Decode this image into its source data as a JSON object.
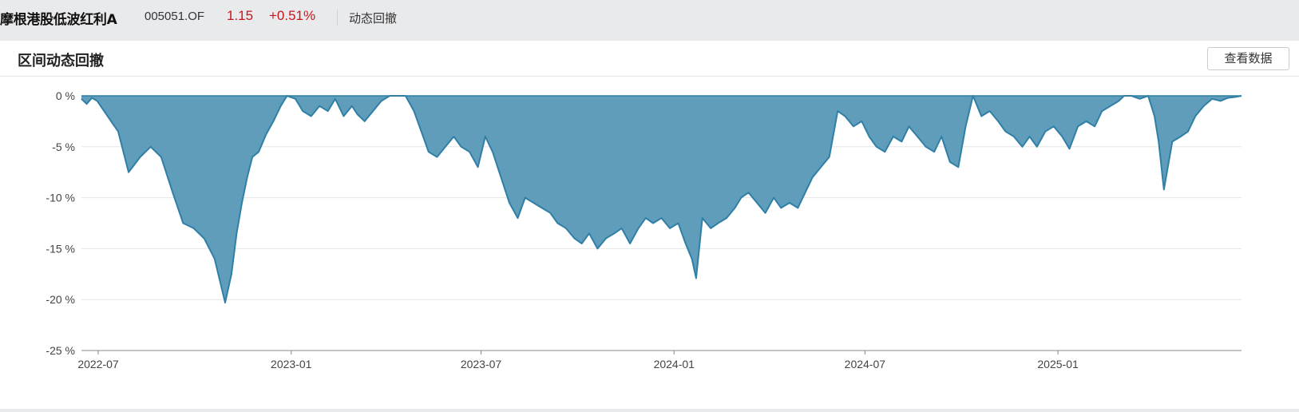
{
  "header": {
    "fund_name": "摩根港股低波红利A",
    "fund_code": "005051.OF",
    "price": "1.15",
    "change": "+0.51%",
    "nav_label": "动态回撤"
  },
  "panel": {
    "title": "区间动态回撤",
    "view_data_button": "查看数据"
  },
  "colors": {
    "area_fill": "#5f9dbb",
    "area_line": "#2f7fa6",
    "price_red": "#c8161d"
  },
  "chart_data": {
    "type": "area",
    "title": "",
    "xlabel": "",
    "ylabel": "",
    "ylim": [
      -25,
      0
    ],
    "y_ticks": [
      0,
      -5,
      -10,
      -15,
      -20,
      -25
    ],
    "y_tick_labels": [
      "0 %",
      "-5 %",
      "-10 %",
      "-15 %",
      "-20 %",
      "-25 %"
    ],
    "x_range": [
      "2022-06-15",
      "2025-06-25"
    ],
    "x_ticks": [
      "2022-07-01",
      "2023-01-01",
      "2023-07-01",
      "2024-01-01",
      "2024-07-01",
      "2025-01-01"
    ],
    "x_tick_labels": [
      "2022-07",
      "2023-01",
      "2023-07",
      "2024-01",
      "2024-07",
      "2025-01"
    ],
    "grid": true,
    "legend": "none",
    "series": [
      {
        "x": [
          "2022-06-15",
          "2022-06-20",
          "2022-06-25",
          "2022-06-30",
          "2022-07-10",
          "2022-07-20",
          "2022-07-30",
          "2022-08-10",
          "2022-08-20",
          "2022-08-30",
          "2022-09-10",
          "2022-09-20",
          "2022-09-30",
          "2022-10-10",
          "2022-10-20",
          "2022-10-30",
          "2022-11-05",
          "2022-11-10",
          "2022-11-15",
          "2022-11-20",
          "2022-11-25",
          "2022-12-01",
          "2022-12-08",
          "2022-12-15",
          "2022-12-22",
          "2022-12-28",
          "2023-01-05",
          "2023-01-12",
          "2023-01-20",
          "2023-01-28",
          "2023-02-05",
          "2023-02-12",
          "2023-02-20",
          "2023-02-28",
          "2023-03-05",
          "2023-03-12",
          "2023-03-20",
          "2023-03-28",
          "2023-04-05",
          "2023-04-12",
          "2023-04-20",
          "2023-04-28",
          "2023-05-05",
          "2023-05-12",
          "2023-05-20",
          "2023-05-28",
          "2023-06-05",
          "2023-06-12",
          "2023-06-20",
          "2023-06-28",
          "2023-07-05",
          "2023-07-12",
          "2023-07-20",
          "2023-07-28",
          "2023-08-05",
          "2023-08-12",
          "2023-08-20",
          "2023-08-28",
          "2023-09-05",
          "2023-09-12",
          "2023-09-20",
          "2023-09-28",
          "2023-10-05",
          "2023-10-12",
          "2023-10-20",
          "2023-10-28",
          "2023-11-05",
          "2023-11-12",
          "2023-11-20",
          "2023-11-28",
          "2023-12-05",
          "2023-12-12",
          "2023-12-20",
          "2023-12-28",
          "2024-01-05",
          "2024-01-12",
          "2024-01-18",
          "2024-01-22",
          "2024-01-28",
          "2024-02-05",
          "2024-02-12",
          "2024-02-20",
          "2024-02-28",
          "2024-03-05",
          "2024-03-12",
          "2024-03-20",
          "2024-03-28",
          "2024-04-05",
          "2024-04-12",
          "2024-04-20",
          "2024-04-28",
          "2024-05-05",
          "2024-05-12",
          "2024-05-20",
          "2024-05-28",
          "2024-06-05",
          "2024-06-12",
          "2024-06-20",
          "2024-06-28",
          "2024-07-05",
          "2024-07-12",
          "2024-07-20",
          "2024-07-28",
          "2024-08-05",
          "2024-08-12",
          "2024-08-20",
          "2024-08-28",
          "2024-09-05",
          "2024-09-12",
          "2024-09-20",
          "2024-09-28",
          "2024-10-05",
          "2024-10-12",
          "2024-10-20",
          "2024-10-28",
          "2024-11-05",
          "2024-11-12",
          "2024-11-20",
          "2024-11-28",
          "2024-12-05",
          "2024-12-12",
          "2024-12-20",
          "2024-12-28",
          "2025-01-05",
          "2025-01-12",
          "2025-01-20",
          "2025-01-28",
          "2025-02-05",
          "2025-02-12",
          "2025-02-20",
          "2025-02-28",
          "2025-03-05",
          "2025-03-12",
          "2025-03-20",
          "2025-03-28",
          "2025-04-03",
          "2025-04-07",
          "2025-04-12",
          "2025-04-20",
          "2025-04-28",
          "2025-05-05",
          "2025-05-12",
          "2025-05-20",
          "2025-05-28",
          "2025-06-05",
          "2025-06-12",
          "2025-06-20",
          "2025-06-25"
        ],
        "values": [
          -0.3,
          -0.8,
          -0.2,
          -0.5,
          -2.0,
          -3.5,
          -7.5,
          -6.0,
          -5.0,
          -6.0,
          -9.5,
          -12.5,
          -13.0,
          -14.0,
          -16.0,
          -20.3,
          -17.5,
          -13.5,
          -10.5,
          -8.0,
          -6.0,
          -5.5,
          -3.8,
          -2.5,
          -1.0,
          0,
          -0.3,
          -1.5,
          -2.0,
          -1.0,
          -1.5,
          -0.3,
          -2.0,
          -1.0,
          -1.8,
          -2.5,
          -1.5,
          -0.5,
          0,
          0,
          0,
          -1.5,
          -3.5,
          -5.5,
          -6.0,
          -5.0,
          -4.0,
          -5.0,
          -5.5,
          -7.0,
          -4.0,
          -5.5,
          -8.0,
          -10.5,
          -12.0,
          -10.0,
          -10.5,
          -11.0,
          -11.5,
          -12.5,
          -13.0,
          -14.0,
          -14.5,
          -13.5,
          -15.0,
          -14.0,
          -13.5,
          -13.0,
          -14.5,
          -13.0,
          -12.0,
          -12.5,
          -12.0,
          -13.0,
          -12.5,
          -14.5,
          -16.0,
          -17.9,
          -12.0,
          -13.0,
          -12.5,
          -12.0,
          -11.0,
          -10.0,
          -9.5,
          -10.5,
          -11.5,
          -10.0,
          -11.0,
          -10.5,
          -11.0,
          -9.5,
          -8.0,
          -7.0,
          -6.0,
          -1.5,
          -2.0,
          -3.0,
          -2.5,
          -4.0,
          -5.0,
          -5.5,
          -4.0,
          -4.5,
          -3.0,
          -4.0,
          -5.0,
          -5.5,
          -4.0,
          -6.5,
          -7.0,
          -3.0,
          0,
          -2.0,
          -1.5,
          -2.5,
          -3.5,
          -4.0,
          -5.0,
          -4.0,
          -5.0,
          -3.5,
          -3.0,
          -4.0,
          -5.2,
          -3.0,
          -2.5,
          -3.0,
          -1.5,
          -1.0,
          -0.5,
          0,
          0,
          -0.3,
          0,
          -2.0,
          -4.5,
          -9.2,
          -4.5,
          -4.0,
          -3.5,
          -2.0,
          -1.0,
          -0.3,
          -0.5,
          -0.2,
          -0.1,
          0
        ]
      }
    ]
  }
}
